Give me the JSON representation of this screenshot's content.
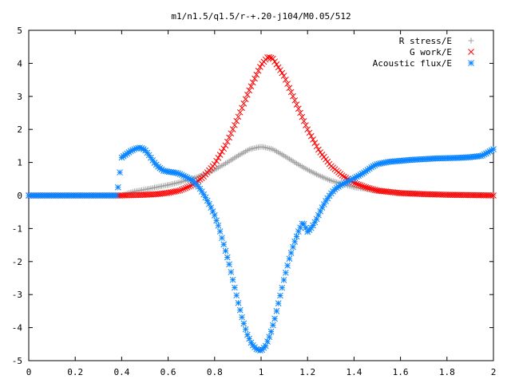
{
  "chart_data": {
    "type": "scatter",
    "title": "m1/n1.5/q1.5/r-+.20-j104/M0.05/512",
    "xlabel": "",
    "ylabel": "",
    "xlim": [
      0,
      2
    ],
    "ylim": [
      -5,
      5
    ],
    "xticks": [
      "0",
      "0.2",
      "0.4",
      "0.6",
      "0.8",
      "1",
      "1.2",
      "1.4",
      "1.6",
      "1.8",
      "2"
    ],
    "yticks": [
      "5",
      "4",
      "3",
      "2",
      "1",
      "0",
      "-1",
      "-2",
      "-3",
      "-4",
      "-5"
    ],
    "grid": false,
    "legend_position": "top-right",
    "series": [
      {
        "name": "R stress/E",
        "marker": "plus",
        "color": "#a0a0a0",
        "x": [
          0,
          0.1,
          0.2,
          0.3,
          0.4,
          0.45,
          0.5,
          0.55,
          0.6,
          0.65,
          0.7,
          0.75,
          0.8,
          0.85,
          0.9,
          0.95,
          1.0,
          1.05,
          1.1,
          1.15,
          1.2,
          1.25,
          1.3,
          1.35,
          1.4,
          1.5,
          1.6,
          1.7,
          1.8,
          1.9,
          2.0
        ],
        "y": [
          0,
          0,
          0,
          0,
          0,
          0.12,
          0.18,
          0.25,
          0.32,
          0.4,
          0.5,
          0.62,
          0.78,
          0.98,
          1.2,
          1.4,
          1.48,
          1.4,
          1.2,
          0.98,
          0.78,
          0.6,
          0.45,
          0.35,
          0.25,
          0.14,
          0.08,
          0.05,
          0.03,
          0.02,
          0.01
        ]
      },
      {
        "name": "G work/E",
        "marker": "cross",
        "color": "#ff0000",
        "x": [
          0,
          0.1,
          0.2,
          0.3,
          0.4,
          0.45,
          0.5,
          0.55,
          0.6,
          0.65,
          0.7,
          0.75,
          0.8,
          0.85,
          0.9,
          0.95,
          1.0,
          1.03,
          1.05,
          1.1,
          1.15,
          1.2,
          1.25,
          1.3,
          1.35,
          1.4,
          1.45,
          1.5,
          1.6,
          1.7,
          1.8,
          1.9,
          2.0
        ],
        "y": [
          0,
          0,
          0,
          0,
          0,
          0.01,
          0.02,
          0.04,
          0.08,
          0.15,
          0.3,
          0.55,
          0.95,
          1.55,
          2.35,
          3.2,
          3.95,
          4.2,
          4.15,
          3.6,
          2.8,
          2.0,
          1.35,
          0.9,
          0.6,
          0.38,
          0.25,
          0.15,
          0.07,
          0.04,
          0.02,
          0.01,
          0.0
        ]
      },
      {
        "name": "Acoustic flux/E",
        "marker": "star",
        "color": "#0a84ff",
        "x": [
          0,
          0.1,
          0.2,
          0.3,
          0.38,
          0.4,
          0.42,
          0.44,
          0.46,
          0.48,
          0.5,
          0.52,
          0.54,
          0.56,
          0.58,
          0.6,
          0.62,
          0.64,
          0.66,
          0.68,
          0.7,
          0.72,
          0.74,
          0.76,
          0.78,
          0.8,
          0.82,
          0.84,
          0.86,
          0.88,
          0.9,
          0.92,
          0.94,
          0.96,
          0.98,
          1.0,
          1.02,
          1.04,
          1.06,
          1.08,
          1.1,
          1.12,
          1.14,
          1.16,
          1.18,
          1.2,
          1.22,
          1.24,
          1.26,
          1.28,
          1.3,
          1.32,
          1.34,
          1.36,
          1.38,
          1.4,
          1.42,
          1.44,
          1.46,
          1.48,
          1.5,
          1.55,
          1.6,
          1.65,
          1.7,
          1.75,
          1.8,
          1.85,
          1.9,
          1.95,
          2.0
        ],
        "y": [
          0,
          0,
          0,
          0,
          0,
          1.15,
          1.25,
          1.35,
          1.42,
          1.45,
          1.38,
          1.2,
          1.0,
          0.85,
          0.75,
          0.72,
          0.7,
          0.68,
          0.62,
          0.55,
          0.48,
          0.35,
          0.18,
          -0.05,
          -0.3,
          -0.6,
          -1.0,
          -1.5,
          -2.0,
          -2.6,
          -3.2,
          -3.75,
          -4.2,
          -4.5,
          -4.65,
          -4.7,
          -4.55,
          -4.2,
          -3.7,
          -3.1,
          -2.5,
          -1.95,
          -1.5,
          -1.1,
          -0.8,
          -1.1,
          -0.95,
          -0.7,
          -0.4,
          -0.15,
          0.05,
          0.2,
          0.3,
          0.38,
          0.45,
          0.52,
          0.6,
          0.68,
          0.78,
          0.88,
          0.95,
          1.02,
          1.05,
          1.08,
          1.1,
          1.12,
          1.13,
          1.14,
          1.16,
          1.2,
          1.4
        ]
      }
    ]
  }
}
